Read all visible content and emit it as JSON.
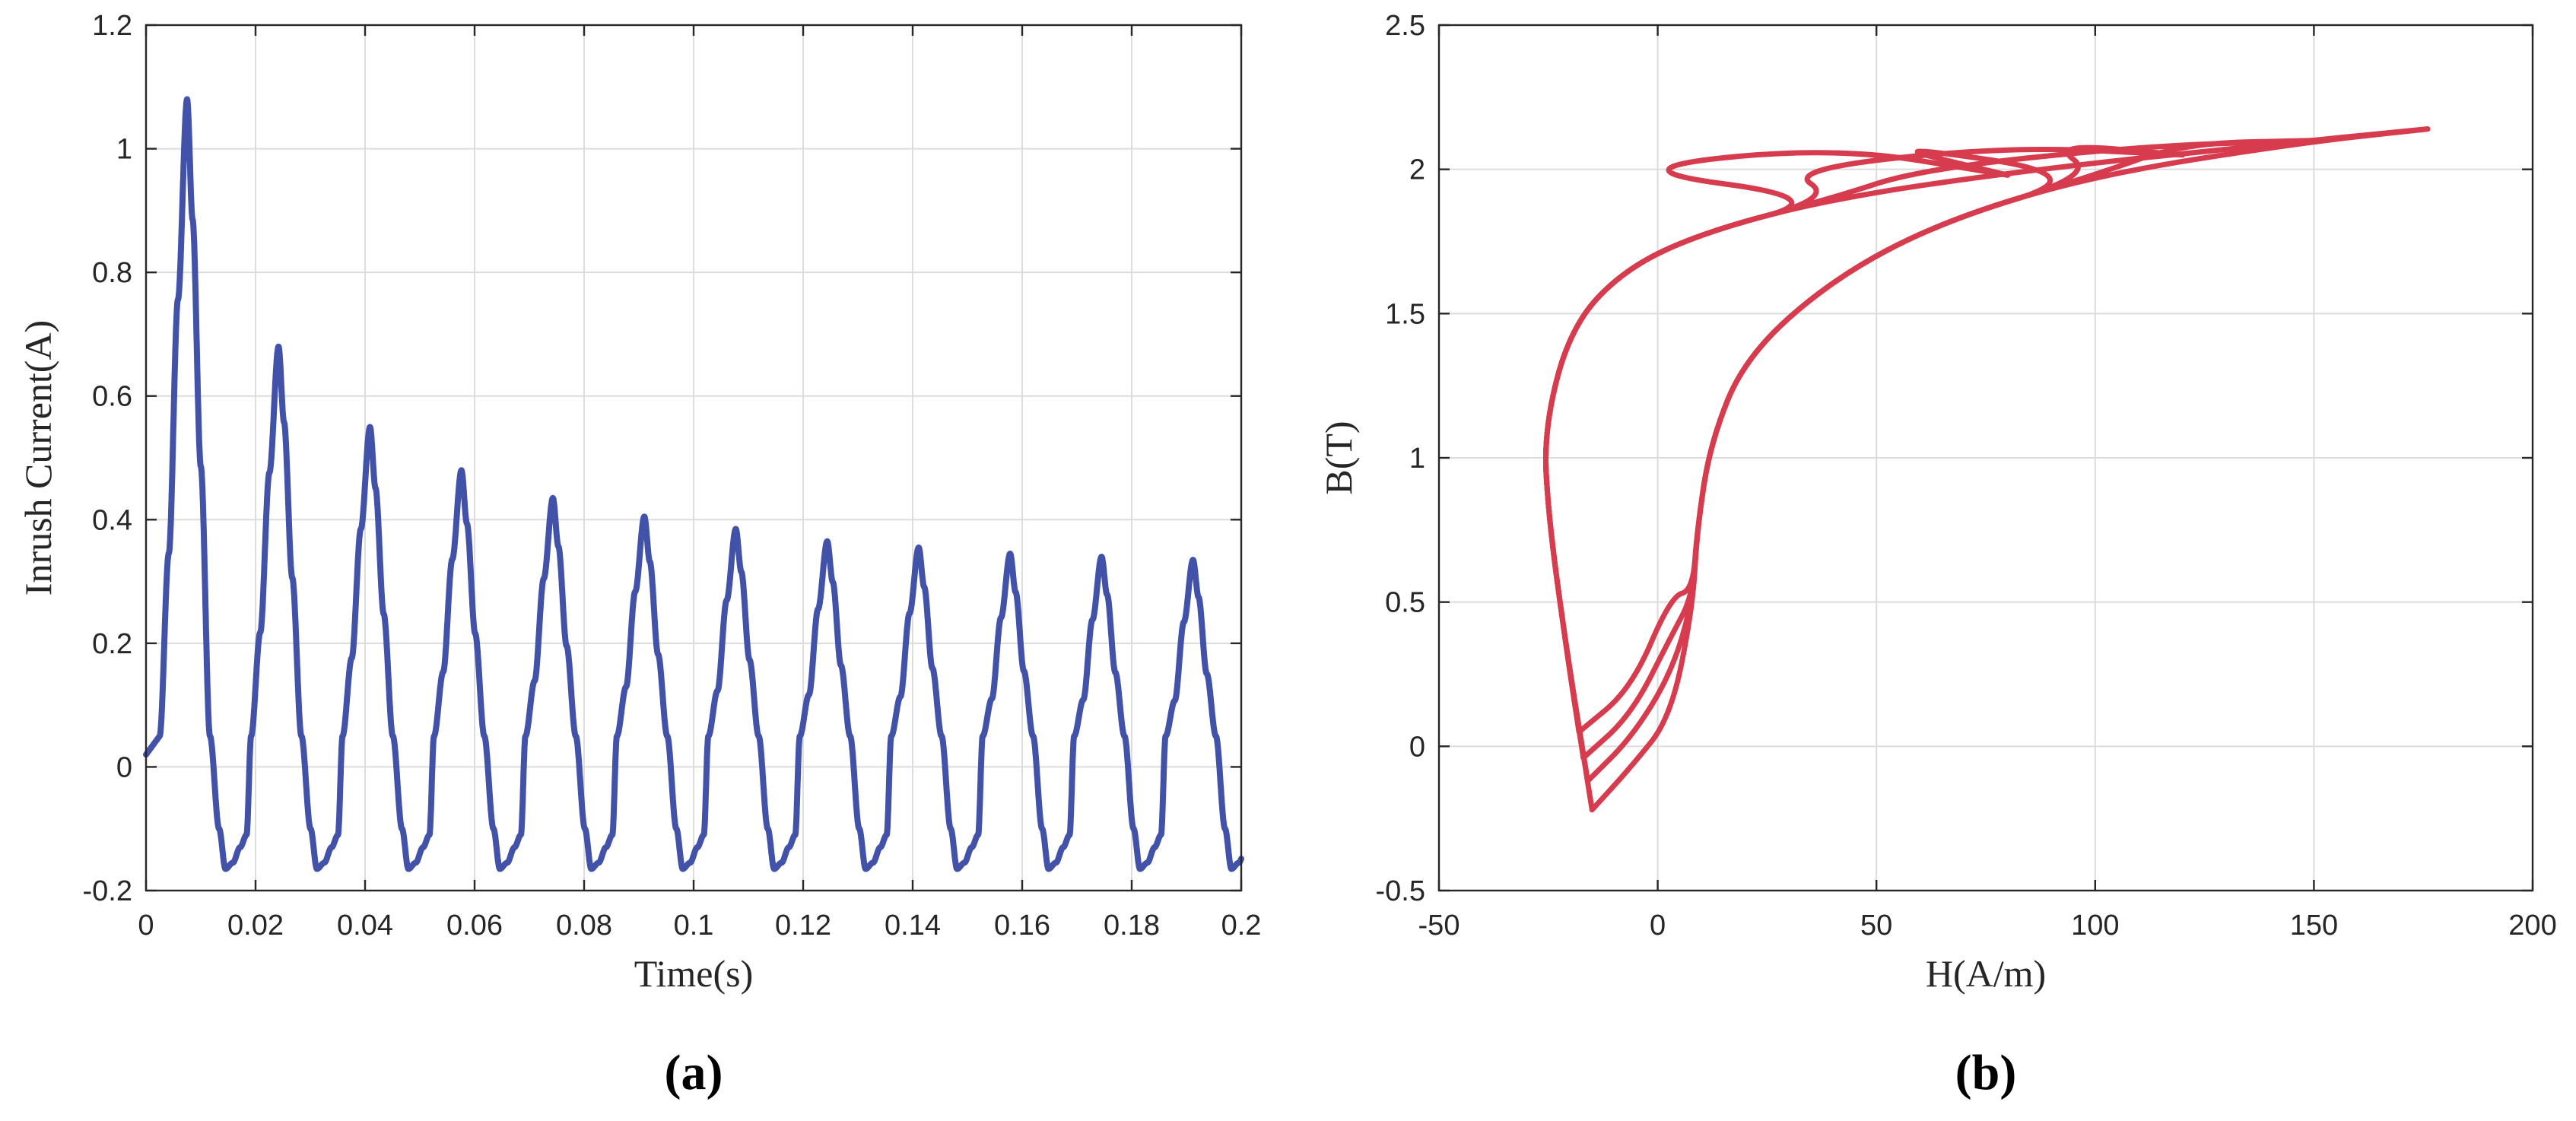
{
  "chart_data": [
    {
      "type": "line",
      "panel_label": "(a)",
      "xlabel": "Time(s)",
      "ylabel": "Inrush Current(A)",
      "xlim": [
        0,
        0.2
      ],
      "ylim": [
        -0.2,
        1.2
      ],
      "xticks": [
        0,
        0.02,
        0.04,
        0.06,
        0.08,
        0.1,
        0.12,
        0.14,
        0.16,
        0.18,
        0.2
      ],
      "xtick_labels": [
        "0",
        "0.02",
        "0.04",
        "0.06",
        "0.08",
        "0.1",
        "0.12",
        "0.14",
        "0.16",
        "0.18",
        "0.2"
      ],
      "yticks": [
        -0.2,
        0,
        0.2,
        0.4,
        0.6,
        0.8,
        1,
        1.2
      ],
      "ytick_labels": [
        "-0.2",
        "0",
        "0.2",
        "0.4",
        "0.6",
        "0.8",
        "1",
        "1.2"
      ],
      "grid": true,
      "color": "#4252a8",
      "series": [
        {
          "period": 0.0167,
          "first_peak_t": 0.0075,
          "peak_values": [
            1.08,
            0.68,
            0.55,
            0.48,
            0.435,
            0.405,
            0.385,
            0.365,
            0.355,
            0.345,
            0.34,
            0.335
          ],
          "trough_value": -0.165,
          "shoulder_value": 0.05
        }
      ]
    },
    {
      "type": "line",
      "panel_label": "(b)",
      "xlabel": "H(A/m)",
      "ylabel": "B(T)",
      "xlim": [
        -50,
        200
      ],
      "ylim": [
        -0.5,
        2.5
      ],
      "xticks": [
        -50,
        0,
        50,
        100,
        150,
        200
      ],
      "xtick_labels": [
        "-50",
        "0",
        "50",
        "100",
        "150",
        "200"
      ],
      "yticks": [
        -0.5,
        0,
        0.5,
        1,
        1.5,
        2,
        2.5
      ],
      "ytick_labels": [
        "-0.5",
        "0",
        "0.5",
        "1",
        "1.5",
        "2",
        "2.5"
      ],
      "grid": true,
      "color": "#d63c4e",
      "series": [
        {
          "loops": [
            {
              "min": [
                -15,
                -0.22
              ],
              "max": [
                176,
                2.14
              ]
            },
            {
              "min": [
                -16,
                -0.12
              ],
              "max": [
                150,
                2.1
              ]
            },
            {
              "min": [
                -17,
                -0.04
              ],
              "max": [
                120,
                2.05
              ]
            },
            {
              "min": [
                -18,
                0.05
              ],
              "max": [
                80,
                1.98
              ]
            }
          ]
        }
      ]
    }
  ]
}
